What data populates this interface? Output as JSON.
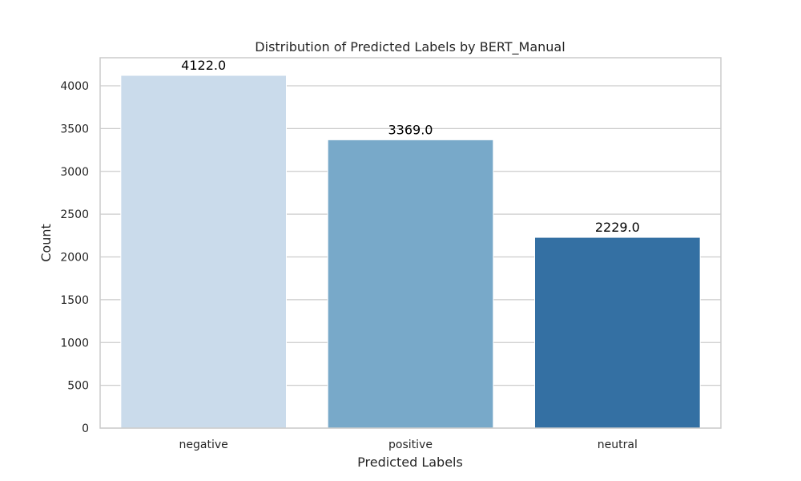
{
  "chart_data": {
    "type": "bar",
    "title": "Distribution of Predicted Labels by BERT_Manual",
    "xlabel": "Predicted Labels",
    "ylabel": "Count",
    "categories": [
      "negative",
      "positive",
      "neutral"
    ],
    "values": [
      4122,
      3369,
      2229
    ],
    "data_labels": [
      "4122.0",
      "3369.0",
      "2229.0"
    ],
    "bar_colors": [
      "#cadbeb",
      "#78a9c9",
      "#3470a3"
    ],
    "ylim": [
      0,
      4328
    ],
    "yticks": [
      0,
      500,
      1000,
      1500,
      2000,
      2500,
      3000,
      3500,
      4000
    ],
    "grid": true,
    "legend": "none"
  }
}
